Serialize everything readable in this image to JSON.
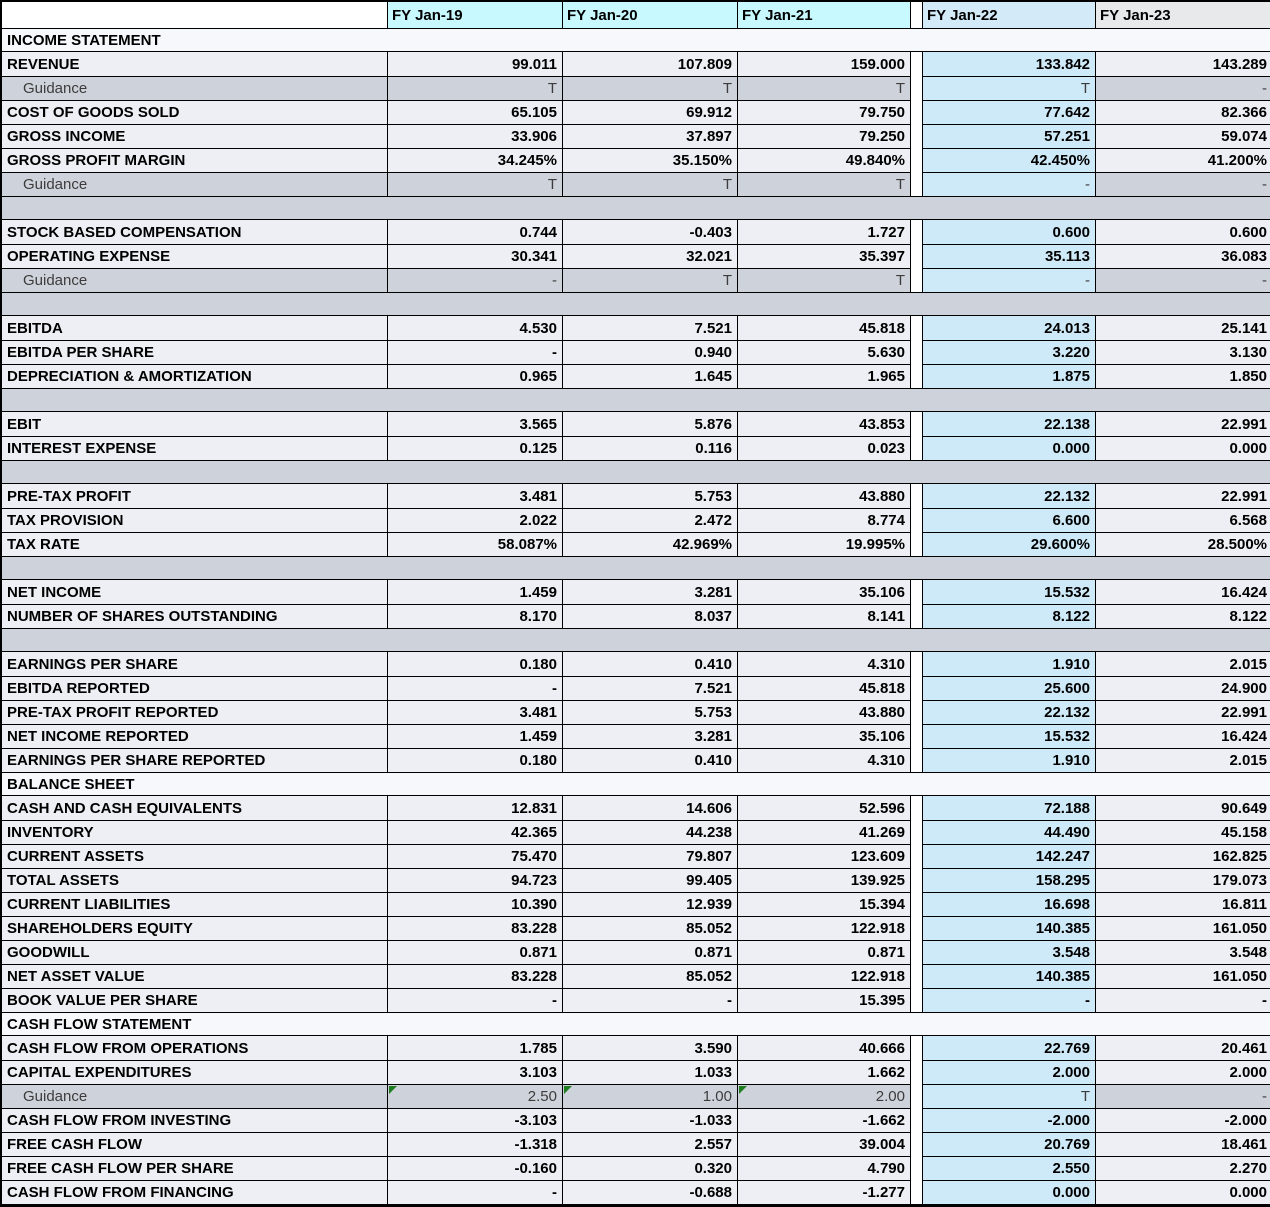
{
  "table": {
    "columns": [
      "FY Jan-19",
      "FY Jan-20",
      "FY Jan-21",
      "FY Jan-22",
      "FY Jan-23"
    ],
    "highlight_column_index": 3,
    "colors": {
      "header_cyan": "#c7f9fe",
      "header_highlight_blue": "#d3eaf8",
      "header_gray": "#e8e9eb",
      "data_row_bg": "#edeff4",
      "section_row_bg": "#f7f8fb",
      "guidance_row_bg": "#ced2da",
      "spacer_row_bg": "#ced2da",
      "highlight_cell_blue": "#cee9f8",
      "grid_border": "#000000",
      "guidance_text": "#3c3c3c",
      "error_marker_green": "#1e7d1e"
    },
    "rows": [
      {
        "type": "section",
        "label": "INCOME STATEMENT"
      },
      {
        "type": "data",
        "label": "REVENUE",
        "values": [
          "99.011",
          "107.809",
          "159.000",
          "133.842",
          "143.289"
        ]
      },
      {
        "type": "guidance",
        "label": "Guidance",
        "values": [
          "T",
          "T",
          "T",
          "T",
          "-"
        ]
      },
      {
        "type": "data",
        "label": "COST OF GOODS SOLD",
        "values": [
          "65.105",
          "69.912",
          "79.750",
          "77.642",
          "82.366"
        ]
      },
      {
        "type": "data",
        "label": "GROSS INCOME",
        "values": [
          "33.906",
          "37.897",
          "79.250",
          "57.251",
          "59.074"
        ]
      },
      {
        "type": "data",
        "label": "GROSS PROFIT MARGIN",
        "values": [
          "34.245%",
          "35.150%",
          "49.840%",
          "42.450%",
          "41.200%"
        ]
      },
      {
        "type": "guidance",
        "label": "Guidance",
        "values": [
          "T",
          "T",
          "T",
          "-",
          "-"
        ]
      },
      {
        "type": "empty"
      },
      {
        "type": "data",
        "label": "STOCK BASED COMPENSATION",
        "values": [
          "0.744",
          "-0.403",
          "1.727",
          "0.600",
          "0.600"
        ]
      },
      {
        "type": "data",
        "label": "OPERATING EXPENSE",
        "values": [
          "30.341",
          "32.021",
          "35.397",
          "35.113",
          "36.083"
        ]
      },
      {
        "type": "guidance",
        "label": "Guidance",
        "values": [
          "-",
          "T",
          "T",
          "-",
          "-"
        ]
      },
      {
        "type": "empty"
      },
      {
        "type": "data",
        "label": "EBITDA",
        "values": [
          "4.530",
          "7.521",
          "45.818",
          "24.013",
          "25.141"
        ]
      },
      {
        "type": "data",
        "label": "EBITDA PER SHARE",
        "values": [
          "-",
          "0.940",
          "5.630",
          "3.220",
          "3.130"
        ]
      },
      {
        "type": "data",
        "label": "DEPRECIATION & AMORTIZATION",
        "values": [
          "0.965",
          "1.645",
          "1.965",
          "1.875",
          "1.850"
        ]
      },
      {
        "type": "empty"
      },
      {
        "type": "data",
        "label": "EBIT",
        "values": [
          "3.565",
          "5.876",
          "43.853",
          "22.138",
          "22.991"
        ]
      },
      {
        "type": "data",
        "label": "INTEREST EXPENSE",
        "values": [
          "0.125",
          "0.116",
          "0.023",
          "0.000",
          "0.000"
        ]
      },
      {
        "type": "empty"
      },
      {
        "type": "data",
        "label": "PRE-TAX PROFIT",
        "values": [
          "3.481",
          "5.753",
          "43.880",
          "22.132",
          "22.991"
        ]
      },
      {
        "type": "data",
        "label": "TAX PROVISION",
        "values": [
          "2.022",
          "2.472",
          "8.774",
          "6.600",
          "6.568"
        ]
      },
      {
        "type": "data",
        "label": "TAX RATE",
        "values": [
          "58.087%",
          "42.969%",
          "19.995%",
          "29.600%",
          "28.500%"
        ]
      },
      {
        "type": "empty"
      },
      {
        "type": "data",
        "label": "NET INCOME",
        "values": [
          "1.459",
          "3.281",
          "35.106",
          "15.532",
          "16.424"
        ]
      },
      {
        "type": "data",
        "label": "NUMBER OF SHARES OUTSTANDING",
        "values": [
          "8.170",
          "8.037",
          "8.141",
          "8.122",
          "8.122"
        ]
      },
      {
        "type": "empty"
      },
      {
        "type": "data",
        "label": "EARNINGS PER SHARE",
        "values": [
          "0.180",
          "0.410",
          "4.310",
          "1.910",
          "2.015"
        ]
      },
      {
        "type": "data",
        "label": "EBITDA REPORTED",
        "values": [
          "-",
          "7.521",
          "45.818",
          "25.600",
          "24.900"
        ]
      },
      {
        "type": "data",
        "label": "PRE-TAX PROFIT REPORTED",
        "values": [
          "3.481",
          "5.753",
          "43.880",
          "22.132",
          "22.991"
        ]
      },
      {
        "type": "data",
        "label": "NET INCOME REPORTED",
        "values": [
          "1.459",
          "3.281",
          "35.106",
          "15.532",
          "16.424"
        ]
      },
      {
        "type": "data",
        "label": "EARNINGS PER SHARE REPORTED",
        "values": [
          "0.180",
          "0.410",
          "4.310",
          "1.910",
          "2.015"
        ]
      },
      {
        "type": "section",
        "label": "BALANCE SHEET"
      },
      {
        "type": "data",
        "label": "CASH AND CASH EQUIVALENTS",
        "values": [
          "12.831",
          "14.606",
          "52.596",
          "72.188",
          "90.649"
        ]
      },
      {
        "type": "data",
        "label": "INVENTORY",
        "values": [
          "42.365",
          "44.238",
          "41.269",
          "44.490",
          "45.158"
        ]
      },
      {
        "type": "data",
        "label": "CURRENT ASSETS",
        "values": [
          "75.470",
          "79.807",
          "123.609",
          "142.247",
          "162.825"
        ]
      },
      {
        "type": "data",
        "label": "TOTAL ASSETS",
        "values": [
          "94.723",
          "99.405",
          "139.925",
          "158.295",
          "179.073"
        ]
      },
      {
        "type": "data",
        "label": "CURRENT LIABILITIES",
        "values": [
          "10.390",
          "12.939",
          "15.394",
          "16.698",
          "16.811"
        ]
      },
      {
        "type": "data",
        "label": "SHAREHOLDERS EQUITY",
        "values": [
          "83.228",
          "85.052",
          "122.918",
          "140.385",
          "161.050"
        ]
      },
      {
        "type": "data",
        "label": "GOODWILL",
        "values": [
          "0.871",
          "0.871",
          "0.871",
          "3.548",
          "3.548"
        ]
      },
      {
        "type": "data",
        "label": "NET ASSET VALUE",
        "values": [
          "83.228",
          "85.052",
          "122.918",
          "140.385",
          "161.050"
        ]
      },
      {
        "type": "data",
        "label": "BOOK VALUE PER SHARE",
        "values": [
          "-",
          "-",
          "15.395",
          "-",
          "-"
        ]
      },
      {
        "type": "section",
        "label": "CASH FLOW STATEMENT"
      },
      {
        "type": "data",
        "label": "CASH FLOW FROM OPERATIONS",
        "values": [
          "1.785",
          "3.590",
          "40.666",
          "22.769",
          "20.461"
        ]
      },
      {
        "type": "data",
        "label": "CAPITAL EXPENDITURES",
        "values": [
          "3.103",
          "1.033",
          "1.662",
          "2.000",
          "2.000"
        ]
      },
      {
        "type": "guidance",
        "label": "Guidance",
        "values": [
          "2.50",
          "1.00",
          "2.00",
          "T",
          "-"
        ],
        "markers": [
          true,
          true,
          true,
          false,
          false
        ]
      },
      {
        "type": "data",
        "label": "CASH FLOW FROM INVESTING",
        "values": [
          "-3.103",
          "-1.033",
          "-1.662",
          "-2.000",
          "-2.000"
        ]
      },
      {
        "type": "data",
        "label": "FREE CASH FLOW",
        "values": [
          "-1.318",
          "2.557",
          "39.004",
          "20.769",
          "18.461"
        ]
      },
      {
        "type": "data",
        "label": "FREE CASH FLOW PER SHARE",
        "values": [
          "-0.160",
          "0.320",
          "4.790",
          "2.550",
          "2.270"
        ]
      },
      {
        "type": "data",
        "label": "CASH FLOW FROM FINANCING",
        "values": [
          "-",
          "-0.688",
          "-1.277",
          "0.000",
          "0.000"
        ]
      }
    ]
  }
}
